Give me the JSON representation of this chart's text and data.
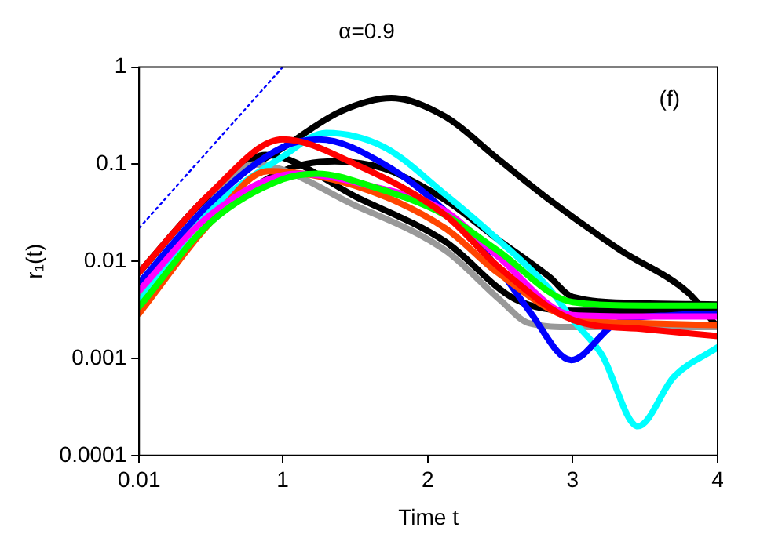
{
  "chart_data": {
    "type": "line",
    "title": "α=0.9",
    "xlabel": "Time t",
    "ylabel": "r₁(t)",
    "annotations": [
      "(f)"
    ],
    "log": "y",
    "grid": false,
    "legend": false,
    "marker": "none",
    "xlim": [
      0.01,
      4
    ],
    "xticks": [
      0.01,
      1,
      2,
      3,
      4
    ],
    "ylim": [
      0.0001,
      1
    ],
    "yticks": [
      0.0001,
      0.001,
      0.01,
      0.1,
      1
    ],
    "series": [
      {
        "color": "#0000ff",
        "line_style": "dotted",
        "x": [
          0.01,
          1
        ],
        "values": [
          0.022,
          1
        ]
      },
      {
        "color": "#ff0000",
        "x": [
          0.01,
          0.5,
          1,
          1.5,
          2.12,
          2.48,
          3,
          3.5,
          4
        ],
        "values": [
          0.0077,
          0.05,
          0.18,
          0.1,
          0.03,
          0.009,
          0.0025,
          0.002,
          0.0017
        ]
      },
      {
        "color": "#00ff00",
        "x": [
          0.01,
          0.5,
          1,
          1.24,
          1.6,
          2.12,
          2.48,
          3,
          3.5,
          4
        ],
        "values": [
          0.0034,
          0.025,
          0.07,
          0.08,
          0.06,
          0.03,
          0.013,
          0.0038,
          0.0035,
          0.0035
        ]
      },
      {
        "color": "#ff00ff",
        "x": [
          0.01,
          0.5,
          1.1,
          1.6,
          2.12,
          2.48,
          3,
          3.5,
          4
        ],
        "values": [
          0.005,
          0.03,
          0.08,
          0.06,
          0.033,
          0.0114,
          0.0028,
          0.0027,
          0.0027
        ]
      },
      {
        "color": "#ff4500",
        "x": [
          0.01,
          0.5,
          0.9,
          1.5,
          2.12,
          2.48,
          3,
          3.5,
          4
        ],
        "values": [
          0.0029,
          0.025,
          0.085,
          0.06,
          0.022,
          0.0077,
          0.0026,
          0.0023,
          0.0022
        ]
      },
      {
        "color": "#0000ff",
        "x": [
          0.01,
          0.5,
          1,
          1.25,
          1.7,
          2.12,
          2.5,
          2.7,
          2.99,
          3.3,
          3.7,
          4
        ],
        "values": [
          0.006,
          0.04,
          0.15,
          0.18,
          0.1,
          0.033,
          0.008,
          0.0031,
          0.00096,
          0.0023,
          0.0028,
          0.0029
        ]
      },
      {
        "color": "#00ffff",
        "x": [
          0.01,
          0.5,
          1,
          1.3,
          1.7,
          2.12,
          2.48,
          2.84,
          3,
          3.2,
          3.45,
          3.7,
          4
        ],
        "values": [
          0.0038,
          0.033,
          0.12,
          0.21,
          0.15,
          0.049,
          0.017,
          0.0052,
          0.0025,
          0.0011,
          0.0002,
          0.00065,
          0.0013
        ]
      },
      {
        "color": "#999999",
        "x": [
          0.01,
          0.5,
          0.8,
          1.51,
          2.12,
          2.5,
          2.7,
          3,
          4
        ],
        "values": [
          0.004,
          0.04,
          0.1,
          0.037,
          0.013,
          0.004,
          0.0023,
          0.0021,
          0.0021
        ]
      },
      {
        "color": "#000000",
        "x": [
          0.01,
          0.5,
          0.88,
          1.52,
          2.12,
          2.6,
          3,
          3.5,
          4
        ],
        "values": [
          0.0035,
          0.04,
          0.125,
          0.045,
          0.016,
          0.0041,
          0.0031,
          0.0031,
          0.0031
        ]
      },
      {
        "color": "#000000",
        "x": [
          0.01,
          0.5,
          1,
          1.36,
          1.7,
          2.12,
          2.48,
          2.84,
          3,
          3.5,
          4
        ],
        "values": [
          0.003,
          0.025,
          0.085,
          0.107,
          0.09,
          0.043,
          0.017,
          0.0069,
          0.0043,
          0.0037,
          0.0036
        ]
      },
      {
        "color": "#000000",
        "x": [
          0.01,
          0.5,
          1,
          1.4,
          1.75,
          2.12,
          2.48,
          2.84,
          3.33,
          3.8,
          4
        ],
        "values": [
          0.0077,
          0.049,
          0.147,
          0.35,
          0.48,
          0.31,
          0.115,
          0.043,
          0.013,
          0.0047,
          0.0021
        ]
      }
    ]
  }
}
